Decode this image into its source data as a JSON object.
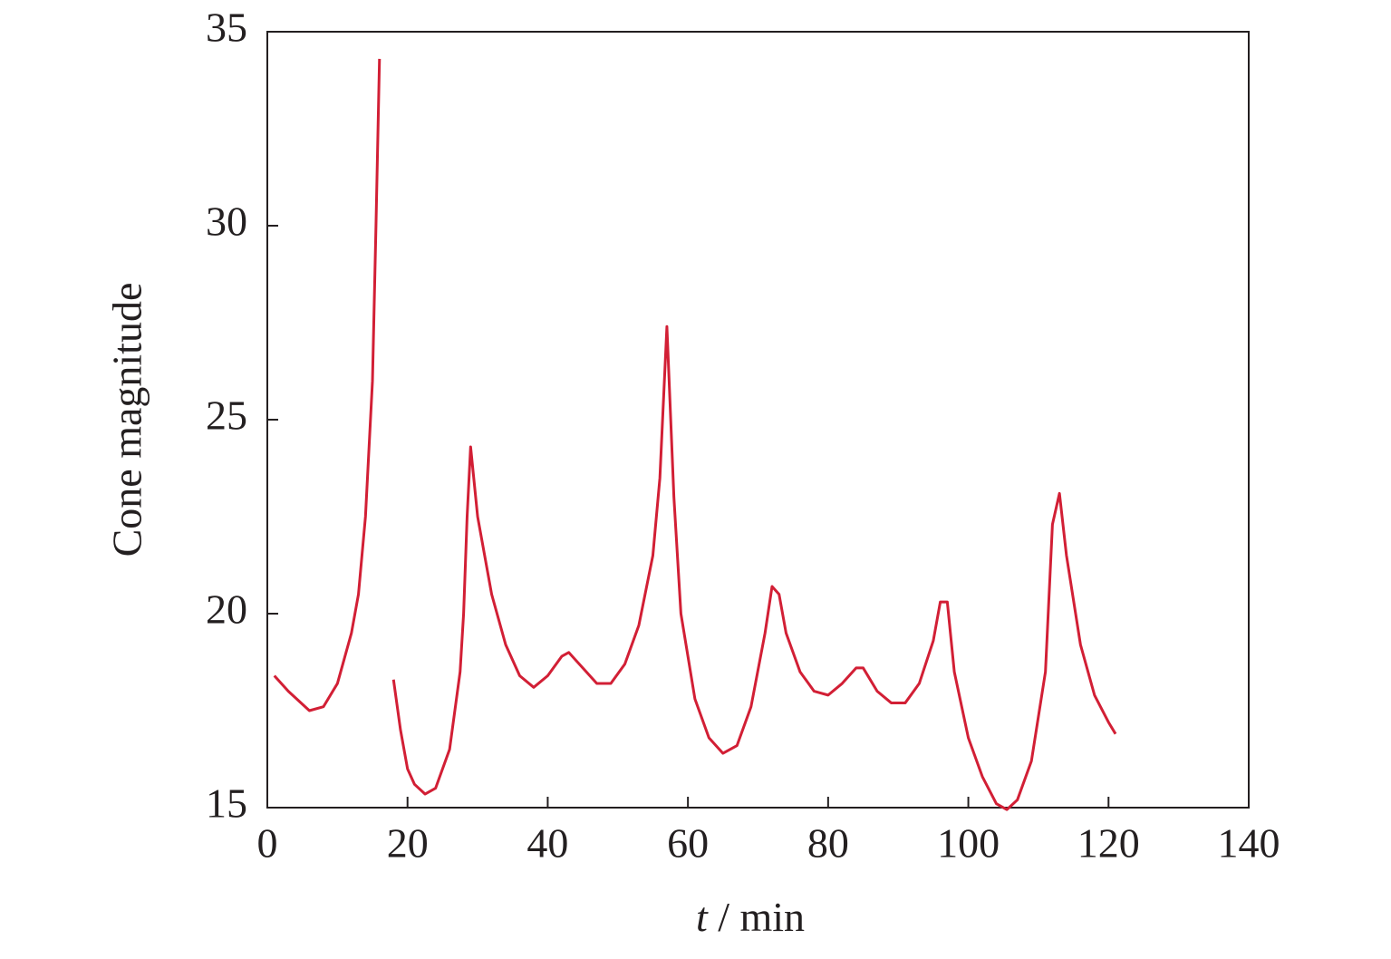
{
  "chart_data": {
    "type": "line",
    "xlabel": {
      "variable": "t",
      "unit": "/ min"
    },
    "ylabel": "Cone magnitude",
    "x": [
      1,
      3,
      6,
      8,
      10,
      12,
      13,
      14,
      15,
      15.5,
      16,
      17,
      18,
      19,
      20,
      21,
      22.5,
      24,
      26,
      27.5,
      28,
      28.5,
      29,
      30,
      32,
      34,
      36,
      38,
      40,
      42,
      43,
      45,
      47,
      49,
      51,
      53,
      55,
      56,
      57,
      58,
      59,
      61,
      63,
      65,
      67,
      69,
      71,
      72,
      73,
      74,
      76,
      78,
      80,
      82,
      84,
      85,
      87,
      89,
      91,
      93,
      95,
      96,
      97,
      98,
      100,
      102,
      104,
      105.5,
      107,
      109,
      111,
      112,
      113,
      114,
      116,
      118,
      120,
      121
    ],
    "series": [
      {
        "name": "Cone magnitude",
        "color": "#d21f35",
        "values": [
          18.4,
          18.0,
          17.5,
          17.6,
          18.2,
          19.5,
          20.5,
          22.5,
          26,
          30,
          34.3,
          null,
          18.3,
          17,
          16.0,
          15.6,
          15.35,
          15.5,
          16.5,
          18.5,
          20,
          22.5,
          24.3,
          22.5,
          20.5,
          19.2,
          18.4,
          18.1,
          18.4,
          18.9,
          19.0,
          18.6,
          18.2,
          18.2,
          18.7,
          19.7,
          21.5,
          23.5,
          27.4,
          23,
          20,
          17.8,
          16.8,
          16.4,
          16.6,
          17.6,
          19.5,
          20.7,
          20.5,
          19.5,
          18.5,
          18.0,
          17.9,
          18.2,
          18.6,
          18.6,
          18.0,
          17.7,
          17.7,
          18.2,
          19.3,
          20.3,
          20.3,
          18.5,
          16.8,
          15.8,
          15.1,
          14.95,
          15.2,
          16.2,
          18.5,
          22.3,
          23.1,
          21.5,
          19.2,
          17.9,
          17.2,
          16.9
        ]
      }
    ],
    "xlim": [
      0,
      140
    ],
    "xticks": [
      0,
      20,
      40,
      60,
      80,
      100,
      120,
      140
    ],
    "ylim": [
      15,
      35
    ],
    "yticks": [
      15,
      20,
      25,
      30,
      35
    ],
    "grid": false
  }
}
